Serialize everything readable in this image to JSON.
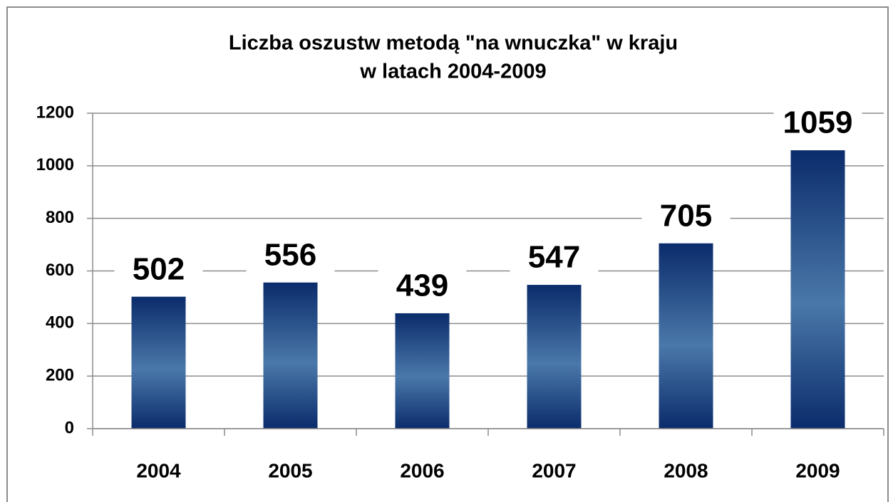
{
  "chart_data": {
    "type": "bar",
    "title": [
      "Liczba oszustw metodą \"na wnuczka\" w kraju",
      "w latach 2004-2009"
    ],
    "categories": [
      "2004",
      "2005",
      "2006",
      "2007",
      "2008",
      "2009"
    ],
    "values": [
      502,
      556,
      439,
      547,
      705,
      1059
    ],
    "color": "#0f3474",
    "label_color": "#15326b",
    "ylim": [
      0,
      1200
    ],
    "yticks": [
      0,
      200,
      400,
      600,
      800,
      1000,
      1200
    ],
    "grid": true
  }
}
